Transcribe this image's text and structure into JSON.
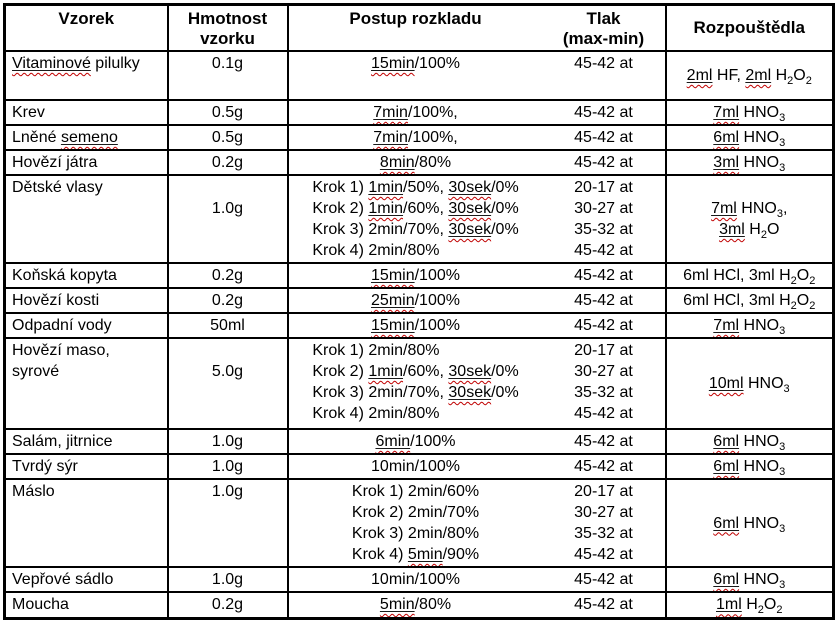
{
  "colors": {
    "table_border": "#000000",
    "text": "#000000",
    "spellcheck_squiggle": "#c00000",
    "background": "#ffffff"
  },
  "table": {
    "headers": [
      "Vzorek",
      "Hmotnost\nvzorku",
      "Postup rozkladu",
      "Tlak\n(max-min)",
      "Rozpouštědla"
    ],
    "rows": [
      {
        "sample": [
          [
            {
              "t": "Vitaminové",
              "w": true
            },
            {
              "t": " pilulky"
            }
          ]
        ],
        "weight": "0.1g",
        "procedure": [
          [
            {
              "t": "15min",
              "w": true
            },
            {
              "t": "/100%"
            }
          ]
        ],
        "pressure": [
          "45-42 at"
        ],
        "solvents": [
          [
            {
              "t": "2ml",
              "w": true
            },
            {
              "t": " HF, "
            },
            {
              "t": "2ml",
              "w": true
            },
            {
              "t": " H"
            },
            {
              "t": "2",
              "s": true
            },
            {
              "t": "O"
            },
            {
              "t": "2",
              "s": true
            }
          ]
        ]
      },
      {
        "sample": [
          [
            {
              "t": "Krev"
            }
          ]
        ],
        "weight": "0.5g",
        "procedure": [
          [
            {
              "t": "7min",
              "w": true
            },
            {
              "t": "/100%,"
            }
          ]
        ],
        "pressure": [
          "45-42 at"
        ],
        "solvents": [
          [
            {
              "t": "7ml",
              "w": true
            },
            {
              "t": " HNO"
            },
            {
              "t": "3",
              "s": true
            }
          ]
        ]
      },
      {
        "sample": [
          [
            {
              "t": "Lněné "
            },
            {
              "t": "semeno",
              "w": true
            }
          ]
        ],
        "weight": "0.5g",
        "procedure": [
          [
            {
              "t": "7min",
              "w": true
            },
            {
              "t": "/100%,"
            }
          ]
        ],
        "pressure": [
          "45-42 at"
        ],
        "solvents": [
          [
            {
              "t": "6ml",
              "w": true
            },
            {
              "t": " HNO"
            },
            {
              "t": "3",
              "s": true
            }
          ]
        ]
      },
      {
        "sample": [
          [
            {
              "t": "Hovězí játra"
            }
          ]
        ],
        "weight": "0.2g",
        "procedure": [
          [
            {
              "t": "8min",
              "w": true
            },
            {
              "t": "/80%"
            }
          ]
        ],
        "pressure": [
          "45-42 at"
        ],
        "solvents": [
          [
            {
              "t": "3ml",
              "w": true
            },
            {
              "t": " HNO"
            },
            {
              "t": "3",
              "s": true
            }
          ]
        ]
      },
      {
        "sample": [
          [
            {
              "t": "Dětské vlasy"
            }
          ]
        ],
        "weight": "1.0g",
        "procedure": [
          [
            {
              "t": "Krok 1) "
            },
            {
              "t": "1min",
              "w": true
            },
            {
              "t": "/50%, "
            },
            {
              "t": "30sek",
              "w": true
            },
            {
              "t": "/0%"
            }
          ],
          [
            {
              "t": "Krok 2) "
            },
            {
              "t": "1min",
              "w": true
            },
            {
              "t": "/60%, "
            },
            {
              "t": "30sek",
              "w": true
            },
            {
              "t": "/0%"
            }
          ],
          [
            {
              "t": "Krok 3) 2min/70%, "
            },
            {
              "t": "30sek",
              "w": true
            },
            {
              "t": "/0%"
            }
          ],
          [
            {
              "t": "Krok 4) 2min/80%"
            }
          ]
        ],
        "pressure": [
          "20-17 at",
          "30-27 at",
          "35-32 at",
          "45-42 at"
        ],
        "solvents": [
          [
            {
              "t": "7ml",
              "w": true
            },
            {
              "t": " HNO"
            },
            {
              "t": "3",
              "s": true
            },
            {
              "t": ","
            }
          ],
          [
            {
              "t": "3ml",
              "w": true
            },
            {
              "t": " H"
            },
            {
              "t": "2",
              "s": true
            },
            {
              "t": "O"
            }
          ]
        ]
      },
      {
        "sample": [
          [
            {
              "t": "Koňská kopyta"
            }
          ]
        ],
        "weight": "0.2g",
        "procedure": [
          [
            {
              "t": "15min",
              "w": true
            },
            {
              "t": "/100%"
            }
          ]
        ],
        "pressure": [
          "45-42 at"
        ],
        "solvents": [
          [
            {
              "t": "6ml HCl, 3ml H"
            },
            {
              "t": "2",
              "s": true
            },
            {
              "t": "O"
            },
            {
              "t": "2",
              "s": true
            }
          ]
        ]
      },
      {
        "sample": [
          [
            {
              "t": "Hovězí kosti"
            }
          ]
        ],
        "weight": "0.2g",
        "procedure": [
          [
            {
              "t": "25min",
              "w": true
            },
            {
              "t": "/100%"
            }
          ]
        ],
        "pressure": [
          "45-42 at"
        ],
        "solvents": [
          [
            {
              "t": "6ml HCl, 3ml H"
            },
            {
              "t": "2",
              "s": true
            },
            {
              "t": "O"
            },
            {
              "t": "2",
              "s": true
            }
          ]
        ]
      },
      {
        "sample": [
          [
            {
              "t": "Odpadní vody"
            }
          ]
        ],
        "weight": "50ml",
        "procedure": [
          [
            {
              "t": "15min",
              "w": true
            },
            {
              "t": "/100%"
            }
          ]
        ],
        "pressure": [
          "45-42 at"
        ],
        "solvents": [
          [
            {
              "t": "7ml",
              "w": true
            },
            {
              "t": " HNO"
            },
            {
              "t": "3",
              "s": true
            }
          ]
        ]
      },
      {
        "sample": [
          [
            {
              "t": "Hovězí maso,"
            }
          ],
          [
            {
              "t": "syrové"
            }
          ]
        ],
        "weight": "5.0g",
        "procedure": [
          [
            {
              "t": "Krok 1) 2min/80%"
            }
          ],
          [
            {
              "t": "Krok 2) "
            },
            {
              "t": "1min",
              "w": true
            },
            {
              "t": "/60%, "
            },
            {
              "t": "30sek",
              "w": true
            },
            {
              "t": "/0%"
            }
          ],
          [
            {
              "t": "Krok 3) 2min/70%, "
            },
            {
              "t": "30sek",
              "w": true
            },
            {
              "t": "/0%"
            }
          ],
          [
            {
              "t": "Krok 4) 2min/80%"
            }
          ]
        ],
        "pressure": [
          "20-17 at",
          "30-27 at",
          "35-32 at",
          "45-42 at"
        ],
        "solvents": [
          [
            {
              "t": "10ml",
              "w": true
            },
            {
              "t": " HNO"
            },
            {
              "t": "3",
              "s": true
            }
          ]
        ]
      },
      {
        "sample": [
          [
            {
              "t": "Salám, jitrnice"
            }
          ]
        ],
        "weight": "1.0g",
        "procedure": [
          [
            {
              "t": "6min",
              "w": true
            },
            {
              "t": "/100%"
            }
          ]
        ],
        "pressure": [
          "45-42 at"
        ],
        "solvents": [
          [
            {
              "t": "6ml",
              "w": true
            },
            {
              "t": " HNO"
            },
            {
              "t": "3",
              "s": true
            }
          ]
        ]
      },
      {
        "sample": [
          [
            {
              "t": "Tvrdý sýr"
            }
          ]
        ],
        "weight": "1.0g",
        "procedure": [
          [
            {
              "t": "10min/100%"
            }
          ]
        ],
        "pressure": [
          "45-42 at"
        ],
        "solvents": [
          [
            {
              "t": "6ml",
              "w": true
            },
            {
              "t": " HNO"
            },
            {
              "t": "3",
              "s": true
            }
          ]
        ]
      },
      {
        "sample": [
          [
            {
              "t": "Máslo"
            }
          ]
        ],
        "weight": "1.0g",
        "procedure": [
          [
            {
              "t": "Krok 1) 2min/60%"
            }
          ],
          [
            {
              "t": "Krok 2) 2min/70%"
            }
          ],
          [
            {
              "t": "Krok 3) 2min/80%"
            }
          ],
          [
            {
              "t": "Krok 4) "
            },
            {
              "t": "5min",
              "w": true
            },
            {
              "t": "/90%"
            }
          ]
        ],
        "pressure": [
          "20-17 at",
          "30-27 at",
          "35-32 at",
          "45-42 at"
        ],
        "solvents": [
          [
            {
              "t": "6ml",
              "w": true
            },
            {
              "t": " HNO"
            },
            {
              "t": "3",
              "s": true
            }
          ]
        ]
      },
      {
        "sample": [
          [
            {
              "t": "Vepřové sádlo"
            }
          ]
        ],
        "weight": "1.0g",
        "procedure": [
          [
            {
              "t": "10min/100%"
            }
          ]
        ],
        "pressure": [
          "45-42 at"
        ],
        "solvents": [
          [
            {
              "t": "6ml",
              "w": true
            },
            {
              "t": " HNO"
            },
            {
              "t": "3",
              "s": true
            }
          ]
        ]
      },
      {
        "sample": [
          [
            {
              "t": "Moucha"
            }
          ]
        ],
        "weight": "0.2g",
        "procedure": [
          [
            {
              "t": "5min",
              "w": true
            },
            {
              "t": "/80%"
            }
          ]
        ],
        "pressure": [
          "45-42 at"
        ],
        "solvents": [
          [
            {
              "t": "1ml",
              "w": true
            },
            {
              "t": " H"
            },
            {
              "t": "2",
              "s": true
            },
            {
              "t": "O"
            },
            {
              "t": "2",
              "s": true
            }
          ]
        ]
      }
    ]
  }
}
